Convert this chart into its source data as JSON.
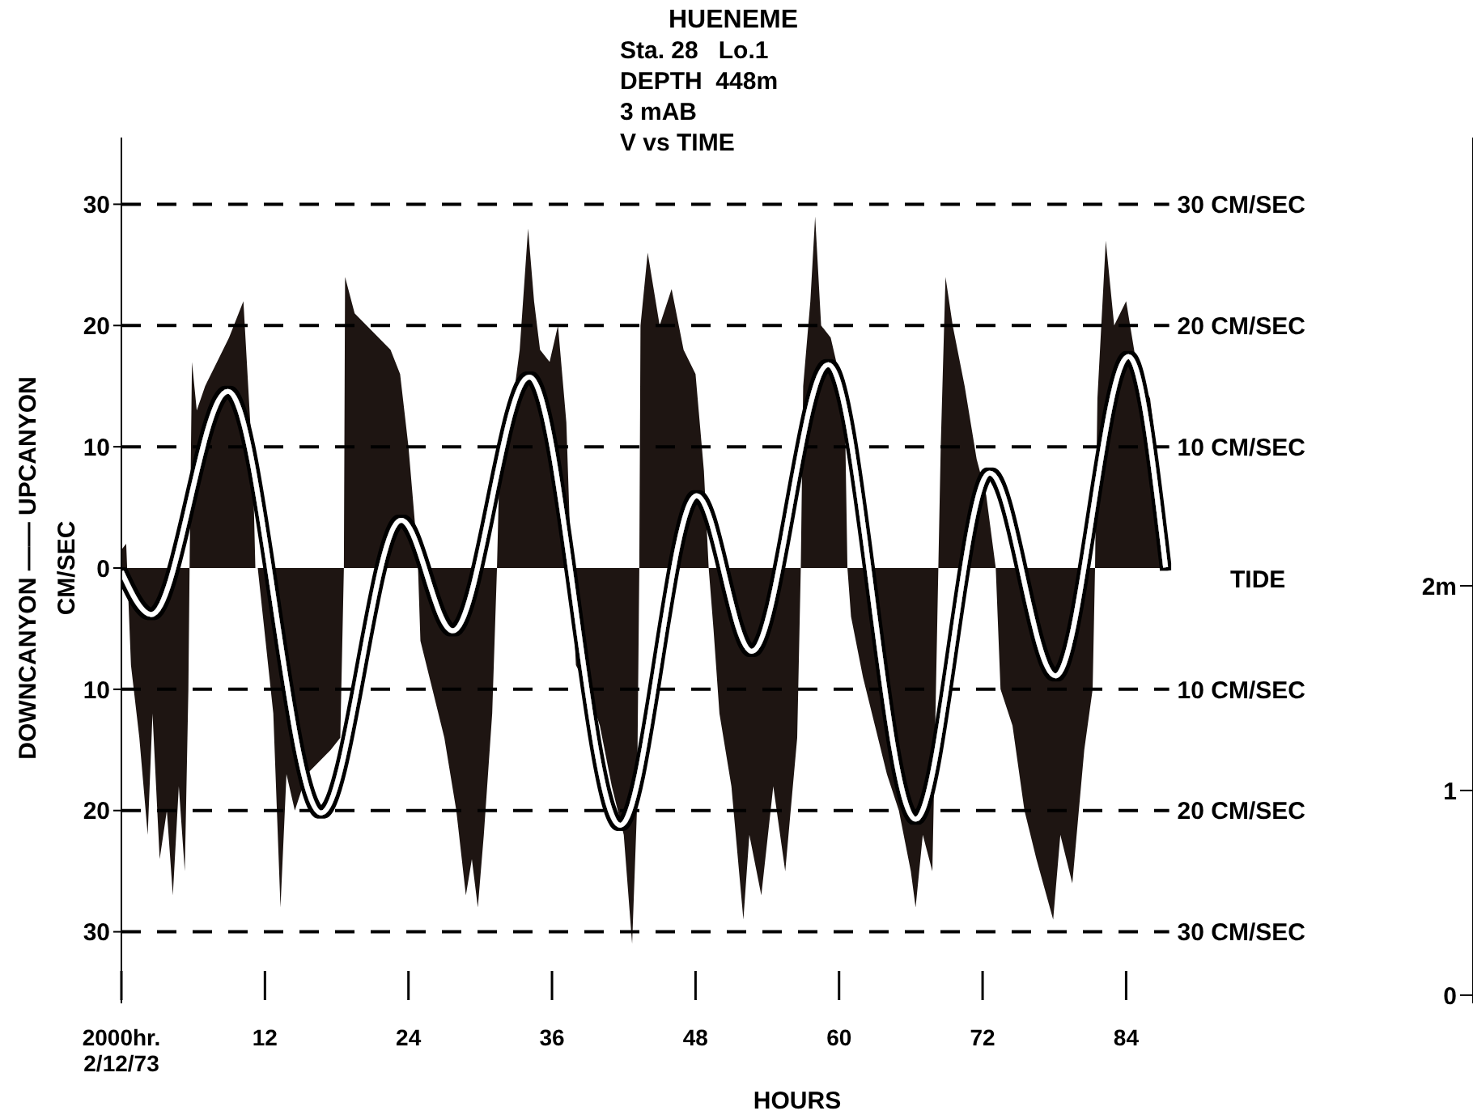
{
  "chart_data": {
    "type": "area",
    "title": "HUENEME",
    "subtitle": "Sta. 28   Lo.1\nDEPTH  448m\n3 mAB\nV vs TIME",
    "xlabel": "HOURS",
    "ylabel": "DOWNCANYON —— UPCANYON\nCM/SEC",
    "y2label": "TIDE",
    "xlim": [
      0,
      113
    ],
    "xticks": [
      {
        "value": 0,
        "label": "2000hr.\n2/12/73"
      },
      12,
      24,
      36,
      48,
      60,
      72,
      84
    ],
    "ylim": [
      -35.9,
      35.5
    ],
    "yticks": [
      {
        "value": -30,
        "label": "30"
      },
      {
        "value": -20,
        "label": "20"
      },
      {
        "value": -10,
        "label": "10"
      },
      0,
      10,
      20,
      30
    ],
    "y2lim": [
      -0.04,
      4.19
    ],
    "y2ticks": [
      0,
      1,
      {
        "value": 2,
        "label": "2m"
      }
    ],
    "series": [
      {
        "color": "#1e1512",
        "x": [
          0,
          0.4,
          0.8,
          1.5,
          2.2,
          2.6,
          3.2,
          3.8,
          4.3,
          4.8,
          5.3,
          5.6,
          5.7,
          5.9,
          6.3,
          7,
          8,
          9,
          9.8,
          10.2,
          10.6,
          11,
          11.2,
          11.4,
          12.7,
          13.3,
          13.8,
          14.5,
          15.5,
          16.5,
          17.5,
          18.3,
          18.6,
          18.7,
          19.5,
          20.5,
          21.5,
          22.5,
          23.3,
          24,
          24.6,
          24.8,
          25,
          26,
          27,
          28,
          28.8,
          29.3,
          29.8,
          30.3,
          31,
          31.4,
          31.6,
          32.5,
          33.3,
          34,
          34.5,
          35,
          35.8,
          36.5,
          37.2,
          37.6,
          38,
          39,
          40,
          41,
          42,
          42.7,
          43.1,
          43.3,
          43.4,
          44,
          45,
          46,
          47,
          48,
          48.7,
          49.1,
          49.5,
          50,
          51,
          52,
          52.5,
          53.5,
          54.5,
          55.5,
          56.5,
          56.8,
          57,
          57.6,
          58,
          58.5,
          59.3,
          60,
          60.5,
          60.7,
          61,
          62,
          63,
          64,
          65,
          66,
          66.4,
          67,
          67.8,
          68.3,
          68.5,
          68.9,
          69.5,
          70.5,
          71.5,
          72.3,
          73.1,
          73.5,
          74.5,
          75.5,
          76.5,
          77.9,
          78.5,
          79.5,
          80.5,
          81.2,
          81.4,
          81.6,
          82.3,
          83,
          84,
          85,
          86,
          87,
          87.6
        ],
        "values": [
          1.5,
          2,
          -8,
          -14,
          -22,
          -12,
          -24,
          -20,
          -27,
          -18,
          -25,
          -10,
          0,
          17,
          13,
          15,
          17,
          19,
          21,
          22,
          15,
          8,
          0,
          0,
          -12,
          -28,
          -17,
          -20,
          -17,
          -16,
          -15,
          -14,
          0,
          24,
          21,
          20,
          19,
          18,
          16,
          10,
          3,
          0,
          -6,
          -10,
          -14,
          -20,
          -27,
          -24,
          -28,
          -22,
          -12,
          0,
          8,
          12,
          18,
          28,
          22,
          18,
          17,
          20,
          12,
          0,
          -8,
          -10,
          -13,
          -18,
          -22,
          -31,
          -20,
          0,
          20,
          26,
          20,
          23,
          18,
          16,
          8,
          0,
          -5,
          -12,
          -18,
          -29,
          -22,
          -27,
          -18,
          -25,
          -14,
          0,
          15,
          22,
          29,
          20,
          19,
          16,
          12,
          0,
          -4,
          -9,
          -13,
          -17,
          -20,
          -25,
          -28,
          -22,
          -25,
          0,
          10,
          24,
          20,
          15,
          9,
          6,
          0,
          -10,
          -13,
          -20,
          -24,
          -29,
          -22,
          -26,
          -15,
          -10,
          0,
          14,
          27,
          20,
          22,
          16,
          14,
          6,
          0
        ]
      },
      {
        "type": "line",
        "axis": "y2",
        "color": "#ffffff",
        "x": [
          0,
          2.5,
          8.9,
          16.7,
          23.4,
          27.7,
          34.1,
          41.7,
          48.1,
          52.7,
          59.1,
          66.4,
          72.6,
          78.1,
          84.2,
          87.3
        ],
        "values": [
          2.07,
          1.86,
          2.95,
          0.89,
          2.32,
          1.78,
          3.02,
          0.83,
          2.44,
          1.68,
          3.08,
          0.86,
          2.55,
          1.56,
          3.12,
          2.09
        ]
      }
    ],
    "ref_lines": [
      {
        "axis": "y",
        "value": 30,
        "label": "30 CM/SEC",
        "line_style": "dashed"
      },
      {
        "axis": "y",
        "value": 20,
        "label": "20 CM/SEC",
        "line_style": "dashed"
      },
      {
        "axis": "y",
        "value": 10,
        "label": "10 CM/SEC",
        "line_style": "dashed"
      },
      {
        "axis": "y",
        "value": -10,
        "label": "10 CM/SEC",
        "line_style": "dashed"
      },
      {
        "axis": "y",
        "value": -20,
        "label": "20 CM/SEC",
        "line_style": "dashed"
      },
      {
        "axis": "y",
        "value": -30,
        "label": "30 CM/SEC",
        "line_style": "dashed"
      }
    ]
  }
}
